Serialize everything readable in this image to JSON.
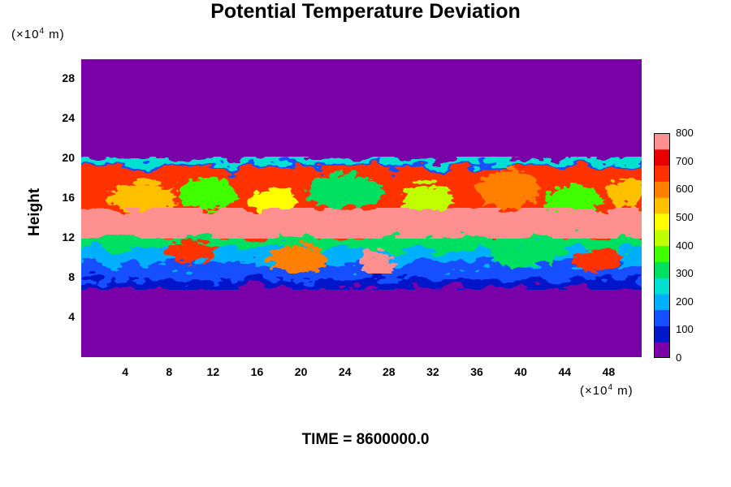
{
  "chart_data": {
    "type": "heatmap",
    "title": "Potential Temperature Deviation",
    "ylabel": "Height",
    "xunit_text": "(×10",
    "xunit_exp": "4",
    "xunit_tail": " m)",
    "yunit_text": "(×10",
    "yunit_exp": "4",
    "yunit_tail": " m)",
    "footer": "TIME = 8600000.0",
    "xlim": [
      0,
      51
    ],
    "ylim": [
      0,
      30
    ],
    "xticks": [
      4,
      8,
      12,
      16,
      20,
      24,
      28,
      32,
      36,
      40,
      44,
      48
    ],
    "yticks": [
      4,
      8,
      12,
      16,
      20,
      24,
      28
    ],
    "colorbar": {
      "range": [
        0,
        800
      ],
      "ticks": [
        0,
        100,
        200,
        300,
        400,
        500,
        600,
        700,
        800
      ],
      "colors": [
        "#7a00a8",
        "#0018c8",
        "#1450ff",
        "#00b0ff",
        "#00e0d0",
        "#00e060",
        "#40ff00",
        "#c0ff00",
        "#ffff00",
        "#ffc000",
        "#ff8000",
        "#ff3000",
        "#e80000",
        "#ff9090"
      ]
    },
    "field_description": {
      "background_value": 0,
      "core_band": {
        "y_range": [
          12,
          15
        ],
        "value": 800
      },
      "turbulent_layer": {
        "y_range": [
          7,
          20
        ]
      }
    }
  }
}
